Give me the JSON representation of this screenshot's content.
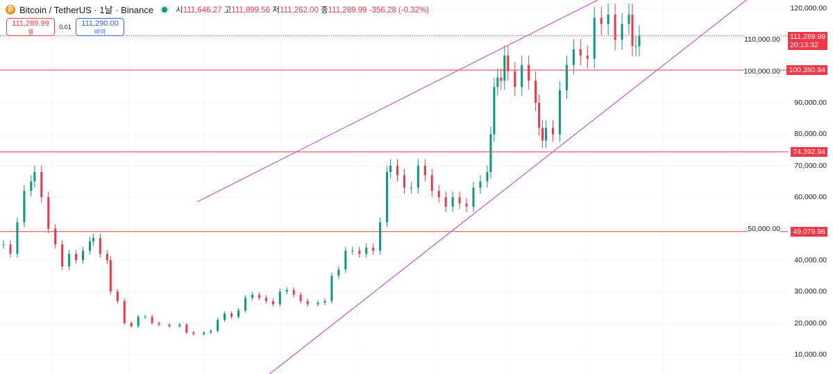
{
  "header": {
    "symbol": "Bitcoin / TetherUS · 1날 · Binance",
    "open_label": "시",
    "open": "111,646.27",
    "high_label": "고",
    "high": "111,899.56",
    "low_label": "저",
    "low": "111,262.00",
    "close_label": "종",
    "close": "111,289.99",
    "change": "-356.28 (-0.32%)"
  },
  "trade": {
    "sell_price": "111,289.99",
    "sell_label": "셀",
    "spread": "0.01",
    "buy_price": "111,290.00",
    "buy_label": "바이"
  },
  "colors": {
    "up": "#089981",
    "down": "#f23645",
    "trendline": "#c255d4",
    "hline": "#f23645"
  },
  "chart_data": {
    "type": "candlestick",
    "ylim": [
      7000,
      123500
    ],
    "y_ticks": [
      120000,
      110000,
      100000,
      90000,
      80000,
      70000,
      60000,
      50000,
      40000,
      30000,
      20000,
      10000
    ],
    "y_tick_labels": [
      "120,000.00",
      "110,000.00",
      "100,000.00",
      "90,000.00",
      "80,000.00",
      "70,000.00",
      "60,000.00",
      "50,000.00",
      "40,000.00",
      "30,000.00",
      "20,000.00",
      "10,000.00"
    ],
    "xlim": [
      0,
      227
    ],
    "bars": [
      [
        0,
        45000
      ],
      [
        2,
        42000
      ],
      [
        4,
        52000
      ],
      [
        6,
        62000
      ],
      [
        8,
        65000
      ],
      [
        9,
        68000
      ],
      [
        11,
        60000
      ],
      [
        13,
        50000
      ],
      [
        15,
        45000
      ],
      [
        17,
        38000
      ],
      [
        19,
        42000
      ],
      [
        21,
        40000
      ],
      [
        23,
        43000
      ],
      [
        25,
        46000
      ],
      [
        26,
        47000
      ],
      [
        28,
        42000
      ],
      [
        30,
        40000
      ],
      [
        31,
        30000
      ],
      [
        33,
        27000
      ],
      [
        35,
        20000
      ],
      [
        37,
        19000
      ],
      [
        39,
        22000
      ],
      [
        41,
        22000
      ],
      [
        43,
        20000
      ],
      [
        45,
        19500
      ],
      [
        48,
        19000
      ],
      [
        51,
        19500
      ],
      [
        53,
        17000
      ],
      [
        55,
        16500
      ],
      [
        58,
        17000
      ],
      [
        60,
        17500
      ],
      [
        62,
        21000
      ],
      [
        64,
        23000
      ],
      [
        66,
        22000
      ],
      [
        68,
        24000
      ],
      [
        70,
        28000
      ],
      [
        72,
        29000
      ],
      [
        74,
        28000
      ],
      [
        76,
        27000
      ],
      [
        78,
        26000
      ],
      [
        80,
        30000
      ],
      [
        82,
        30500
      ],
      [
        84,
        29000
      ],
      [
        86,
        27000
      ],
      [
        88,
        26000
      ],
      [
        91,
        26500
      ],
      [
        93,
        27000
      ],
      [
        95,
        35000
      ],
      [
        97,
        37000
      ],
      [
        99,
        43000
      ],
      [
        101,
        43000
      ],
      [
        103,
        42000
      ],
      [
        105,
        44000
      ],
      [
        107,
        43000
      ],
      [
        109,
        52000
      ],
      [
        111,
        68000
      ],
      [
        112,
        70000
      ],
      [
        114,
        67000
      ],
      [
        116,
        63000
      ],
      [
        118,
        63000
      ],
      [
        120,
        70000
      ],
      [
        122,
        67000
      ],
      [
        124,
        62000
      ],
      [
        126,
        60000
      ],
      [
        128,
        57000
      ],
      [
        130,
        60000
      ],
      [
        132,
        58000
      ],
      [
        134,
        57000
      ],
      [
        136,
        63000
      ],
      [
        138,
        65000
      ],
      [
        140,
        68000
      ],
      [
        141,
        80000
      ],
      [
        142,
        95000
      ],
      [
        143,
        98000
      ],
      [
        144,
        97000
      ],
      [
        145,
        105000
      ],
      [
        146,
        100000
      ],
      [
        148,
        95000
      ],
      [
        150,
        102000
      ],
      [
        152,
        97000
      ],
      [
        154,
        90000
      ],
      [
        155,
        82000
      ],
      [
        156,
        78000
      ],
      [
        157,
        82000
      ],
      [
        159,
        80000
      ],
      [
        161,
        94000
      ],
      [
        163,
        102000
      ],
      [
        165,
        107000
      ],
      [
        167,
        105000
      ],
      [
        169,
        104000
      ],
      [
        171,
        117000
      ],
      [
        173,
        115000
      ],
      [
        175,
        118000
      ],
      [
        177,
        110000
      ],
      [
        179,
        115000
      ],
      [
        181,
        118000
      ],
      [
        182,
        108000
      ],
      [
        183,
        108000
      ],
      [
        184,
        111289.99
      ]
    ],
    "horizontal_lines": [
      {
        "price": 100380.94,
        "label": "100,380.94"
      },
      {
        "price": 74392.94,
        "label": "74,392.94"
      },
      {
        "price": 49079.96,
        "label": "49,079.96"
      }
    ],
    "current_price": {
      "price": 111289.99,
      "label": "111,289.99",
      "countdown": "20:13:32"
    },
    "trendlines": [
      {
        "from": [
          56,
          58490
        ],
        "to": [
          172,
          122645
        ]
      },
      {
        "from": [
          77,
          3818
        ],
        "to": [
          215,
          122645
        ]
      }
    ]
  }
}
